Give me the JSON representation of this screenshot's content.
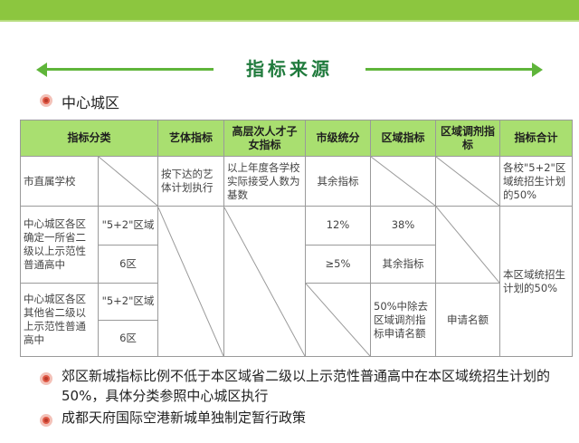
{
  "title": "指标来源",
  "section": "中心城区",
  "table": {
    "headers": [
      "指标分类",
      "艺体指标",
      "高层次人才子女指标",
      "市级统分",
      "区域指标",
      "区域调剂指标",
      "指标合计"
    ],
    "row1": {
      "category": "市直属学校",
      "arts": "按下达的艺体计划执行",
      "talent": "以上年度各学校实际接受人数为基数",
      "city": "其余指标",
      "total": "各校\"5+2\"区域统招生计划的50%"
    },
    "group_a": {
      "label": "中心城区各区确定一所省二级以上示范性普通高中",
      "sub1": "\"5+2\"区域",
      "sub2": "6区",
      "city1": "12%",
      "region1": "38%",
      "city2": "≥5%",
      "region2": "其余指标"
    },
    "group_b": {
      "label": "中心城区各区其他省二级以上示范性普通高中",
      "sub1": "\"5+2\"区域",
      "sub2": "6区",
      "region": "50%中除去区域调剂指标申请名额",
      "adjust": "申请名额"
    },
    "total_merged": "本区域统招生计划的50%"
  },
  "notes": [
    "郊区新城指标比例不低于本区域省二级以上示范性普通高中在本区域统招生计划的50%，具体分类参照中心城区执行",
    "成都天府国际空港新城单独制定暂行政策"
  ],
  "colors": {
    "header_green": "#a9df70",
    "title_green": "#1f7a3c",
    "bullet_red": "#e05a47",
    "top_bar": "#8cc63f"
  }
}
